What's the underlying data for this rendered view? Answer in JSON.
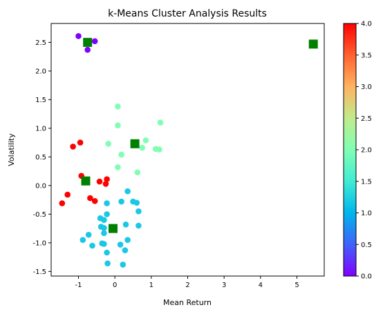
{
  "chart_data": {
    "type": "scatter",
    "title": "k-Means Cluster Analysis Results",
    "xlabel": "Mean Return",
    "ylabel": "Volatility",
    "xlim": [
      -1.75,
      5.75
    ],
    "ylim": [
      -1.58,
      2.83
    ],
    "xticks": [
      -1,
      0,
      1,
      2,
      3,
      4,
      5
    ],
    "yticks": [
      -1.5,
      -1.0,
      -0.5,
      0.0,
      0.5,
      1.0,
      1.5,
      2.0,
      2.5
    ],
    "grid": false,
    "colorbar": {
      "colormap": "rainbow",
      "range": [
        0,
        4
      ],
      "ticks": [
        0.0,
        0.5,
        1.0,
        1.5,
        2.0,
        2.5,
        3.0,
        3.5,
        4.0
      ]
    },
    "points": [
      {
        "x": -1.0,
        "y": 2.61,
        "cluster": 0
      },
      {
        "x": -0.55,
        "y": 2.52,
        "cluster": 0
      },
      {
        "x": -0.75,
        "y": 2.37,
        "cluster": 0
      },
      {
        "x": 0.08,
        "y": 1.38,
        "cluster": 2
      },
      {
        "x": 0.08,
        "y": 1.05,
        "cluster": 2
      },
      {
        "x": 1.25,
        "y": 1.1,
        "cluster": 2
      },
      {
        "x": 0.85,
        "y": 0.79,
        "cluster": 2
      },
      {
        "x": -0.18,
        "y": 0.73,
        "cluster": 2
      },
      {
        "x": 0.75,
        "y": 0.66,
        "cluster": 2
      },
      {
        "x": 1.12,
        "y": 0.64,
        "cluster": 2
      },
      {
        "x": 1.22,
        "y": 0.63,
        "cluster": 2
      },
      {
        "x": 0.18,
        "y": 0.54,
        "cluster": 2
      },
      {
        "x": 0.08,
        "y": 0.32,
        "cluster": 2
      },
      {
        "x": 0.62,
        "y": 0.23,
        "cluster": 2
      },
      {
        "x": -1.15,
        "y": 0.68,
        "cluster": 4
      },
      {
        "x": -0.95,
        "y": 0.75,
        "cluster": 4
      },
      {
        "x": -0.92,
        "y": 0.17,
        "cluster": 4
      },
      {
        "x": -0.42,
        "y": 0.07,
        "cluster": 4
      },
      {
        "x": -0.22,
        "y": 0.11,
        "cluster": 4
      },
      {
        "x": -0.25,
        "y": 0.03,
        "cluster": 4
      },
      {
        "x": -1.3,
        "y": -0.16,
        "cluster": 4
      },
      {
        "x": -1.45,
        "y": -0.31,
        "cluster": 4
      },
      {
        "x": -0.68,
        "y": -0.22,
        "cluster": 4
      },
      {
        "x": -0.55,
        "y": -0.27,
        "cluster": 4
      },
      {
        "x": 0.35,
        "y": -0.1,
        "cluster": 1
      },
      {
        "x": 0.18,
        "y": -0.28,
        "cluster": 1
      },
      {
        "x": 0.5,
        "y": -0.28,
        "cluster": 1
      },
      {
        "x": 0.6,
        "y": -0.3,
        "cluster": 1
      },
      {
        "x": -0.22,
        "y": -0.31,
        "cluster": 1
      },
      {
        "x": 0.65,
        "y": -0.45,
        "cluster": 1
      },
      {
        "x": -0.22,
        "y": -0.5,
        "cluster": 1
      },
      {
        "x": -0.4,
        "y": -0.57,
        "cluster": 1
      },
      {
        "x": -0.3,
        "y": -0.6,
        "cluster": 1
      },
      {
        "x": -0.38,
        "y": -0.72,
        "cluster": 1
      },
      {
        "x": -0.3,
        "y": -0.74,
        "cluster": 1
      },
      {
        "x": 0.3,
        "y": -0.68,
        "cluster": 1
      },
      {
        "x": 0.65,
        "y": -0.7,
        "cluster": 1
      },
      {
        "x": -0.3,
        "y": -0.83,
        "cluster": 1
      },
      {
        "x": -0.72,
        "y": -0.86,
        "cluster": 1
      },
      {
        "x": -0.88,
        "y": -0.95,
        "cluster": 1
      },
      {
        "x": 0.35,
        "y": -0.95,
        "cluster": 1
      },
      {
        "x": -0.35,
        "y": -1.01,
        "cluster": 1
      },
      {
        "x": -0.3,
        "y": -1.02,
        "cluster": 1
      },
      {
        "x": -0.62,
        "y": -1.05,
        "cluster": 1
      },
      {
        "x": 0.15,
        "y": -1.03,
        "cluster": 1
      },
      {
        "x": 0.28,
        "y": -1.13,
        "cluster": 1
      },
      {
        "x": -0.22,
        "y": -1.17,
        "cluster": 1
      },
      {
        "x": -0.2,
        "y": -1.36,
        "cluster": 1
      },
      {
        "x": 0.22,
        "y": -1.38,
        "cluster": 1
      }
    ],
    "centroids": [
      {
        "x": -0.75,
        "y": 2.5
      },
      {
        "x": 5.45,
        "y": 2.47
      },
      {
        "x": 0.55,
        "y": 0.73
      },
      {
        "x": -0.8,
        "y": 0.08
      },
      {
        "x": -0.05,
        "y": -0.75
      }
    ],
    "centroid_color": "#008000",
    "cluster_colors": [
      "#8000ff",
      "#1ac7e6",
      "#80ffb4",
      "#ffb360",
      "#ff0000"
    ]
  }
}
